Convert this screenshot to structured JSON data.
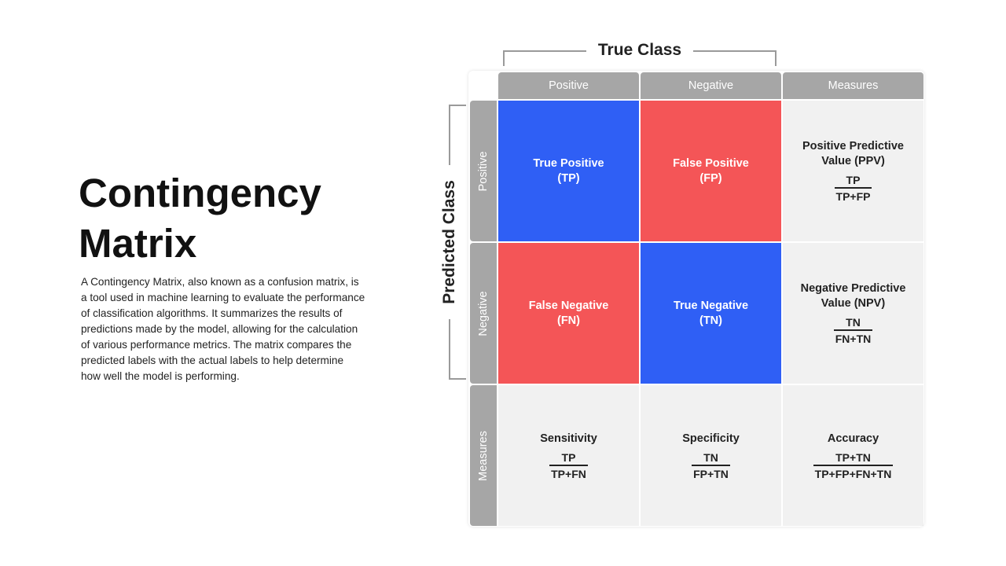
{
  "title": {
    "line1": "Contingency",
    "line2": "Matrix"
  },
  "description": "A Contingency Matrix, also known as a confusion matrix, is a tool used in machine learning to evaluate the performance of classification algorithms. It summarizes the results of predictions made by the model, allowing for the calculation of various performance metrics. The matrix compares the predicted labels with the actual labels to help determine how well the model is performing.",
  "matrix": {
    "true_class_label": "True Class",
    "predicted_class_label": "Predicted Class",
    "col_headers": [
      "Positive",
      "Negative",
      "Measures"
    ],
    "row_headers": [
      "Positive",
      "Negative",
      "Measures"
    ],
    "cells": {
      "tp": {
        "name1": "True Positive",
        "name2": "(TP)"
      },
      "fp": {
        "name1": "False Positive",
        "name2": "(FP)"
      },
      "ppv": {
        "name1": "Positive Predictive",
        "name2": "Value (PPV)",
        "num": "TP",
        "den": "TP+FP"
      },
      "fn": {
        "name1": "False Negative",
        "name2": "(FN)"
      },
      "tn": {
        "name1": "True Negative",
        "name2": "(TN)"
      },
      "npv": {
        "name1": "Negative Predictive",
        "name2": "Value (NPV)",
        "num": "TN",
        "den": "FN+TN"
      },
      "sensitivity": {
        "name1": "Sensitivity",
        "num": "TP",
        "den": "TP+FN"
      },
      "specificity": {
        "name1": "Specificity",
        "num": "TN",
        "den": "FP+TN"
      },
      "accuracy": {
        "name1": "Accuracy",
        "num": "TP+TN",
        "den": "TP+FP+FN+TN"
      }
    },
    "colors": {
      "blue": "#2f5ff5",
      "red": "#f45557",
      "header": "#a6a6a6",
      "measure_bg": "#f1f1f1"
    }
  }
}
